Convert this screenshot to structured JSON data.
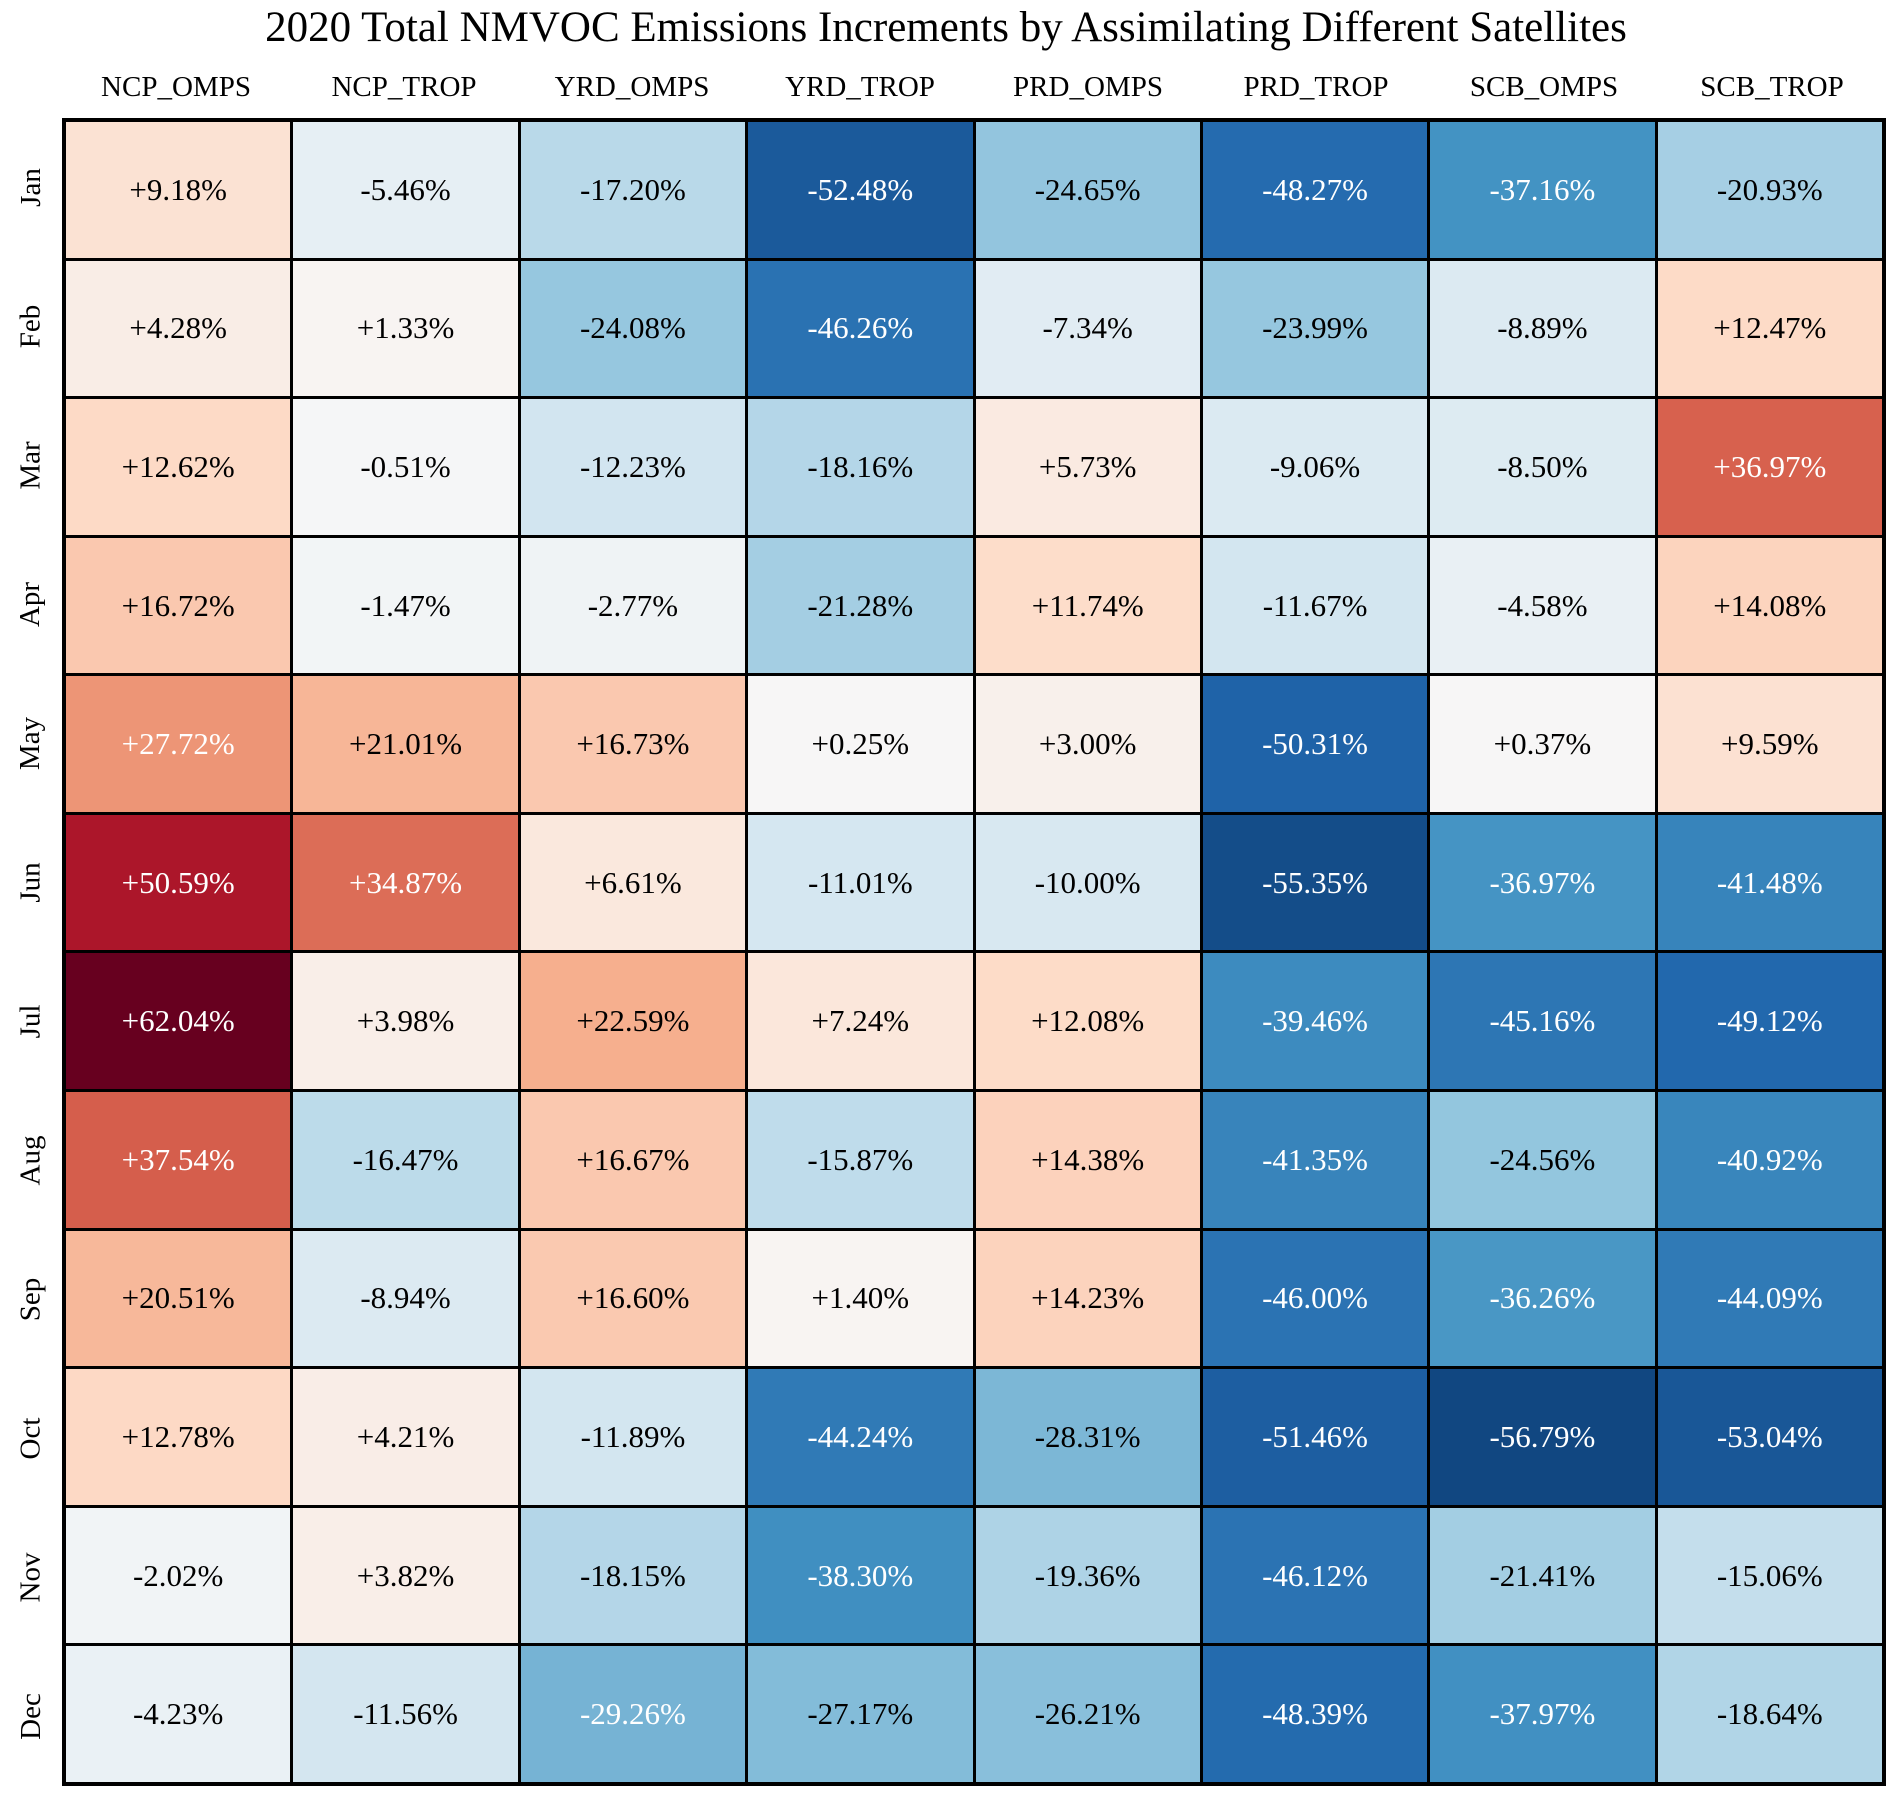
{
  "chart_data": {
    "type": "heatmap",
    "title": "2020 Total NMVOC Emissions Increments by Assimilating Different Satellites",
    "columns": [
      "NCP_OMPS",
      "NCP_TROP",
      "YRD_OMPS",
      "YRD_TROP",
      "PRD_OMPS",
      "PRD_TROP",
      "SCB_OMPS",
      "SCB_TROP"
    ],
    "rows": [
      "Jan",
      "Feb",
      "Mar",
      "Apr",
      "May",
      "Jun",
      "Jul",
      "Aug",
      "Sep",
      "Oct",
      "Nov",
      "Dec"
    ],
    "values_percent": [
      [
        9.18,
        -5.46,
        -17.2,
        -52.48,
        -24.65,
        -48.27,
        -37.16,
        -20.93
      ],
      [
        4.28,
        1.33,
        -24.08,
        -46.26,
        -7.34,
        -23.99,
        -8.89,
        12.47
      ],
      [
        12.62,
        -0.51,
        -12.23,
        -18.16,
        5.73,
        -9.06,
        -8.5,
        36.97
      ],
      [
        16.72,
        -1.47,
        -2.77,
        -21.28,
        11.74,
        -11.67,
        -4.58,
        14.08
      ],
      [
        27.72,
        21.01,
        16.73,
        0.25,
        3.0,
        -50.31,
        0.37,
        9.59
      ],
      [
        50.59,
        34.87,
        6.61,
        -11.01,
        -10.0,
        -55.35,
        -36.97,
        -41.48
      ],
      [
        62.04,
        3.98,
        22.59,
        7.24,
        12.08,
        -39.46,
        -45.16,
        -49.12
      ],
      [
        37.54,
        -16.47,
        16.67,
        -15.87,
        14.38,
        -41.35,
        -24.56,
        -40.92
      ],
      [
        20.51,
        -8.94,
        16.6,
        1.4,
        14.23,
        -46.0,
        -36.26,
        -44.09
      ],
      [
        12.78,
        4.21,
        -11.89,
        -44.24,
        -28.31,
        -51.46,
        -56.79,
        -53.04
      ],
      [
        -2.02,
        3.82,
        -18.15,
        -38.3,
        -19.36,
        -46.12,
        -21.41,
        -15.06
      ],
      [
        -4.23,
        -11.56,
        -29.26,
        -27.17,
        -26.21,
        -48.39,
        -37.97,
        -18.64
      ]
    ],
    "cell_text_format": "signed percent with 2 decimals, e.g. +9.18% / -5.46%",
    "white_text_cells": [
      [
        0,
        0,
        0,
        1,
        0,
        1,
        1,
        0
      ],
      [
        0,
        0,
        0,
        1,
        0,
        0,
        0,
        0
      ],
      [
        0,
        0,
        0,
        0,
        0,
        0,
        0,
        1
      ],
      [
        0,
        0,
        0,
        0,
        0,
        0,
        0,
        0
      ],
      [
        1,
        0,
        0,
        0,
        0,
        1,
        0,
        0
      ],
      [
        1,
        1,
        0,
        0,
        0,
        1,
        1,
        1
      ],
      [
        1,
        0,
        0,
        0,
        0,
        1,
        1,
        1
      ],
      [
        1,
        0,
        0,
        0,
        0,
        1,
        0,
        1
      ],
      [
        0,
        0,
        0,
        0,
        0,
        1,
        1,
        1
      ],
      [
        0,
        0,
        0,
        1,
        0,
        1,
        1,
        1
      ],
      [
        0,
        0,
        0,
        1,
        0,
        1,
        0,
        0
      ],
      [
        0,
        0,
        1,
        0,
        0,
        1,
        1,
        0
      ]
    ],
    "colormap": {
      "name": "RdBu diverging (blue = negative, red = positive)",
      "vmin": -62.04,
      "vmax": 62.04,
      "stops": [
        "#053061",
        "#2166ac",
        "#4393c3",
        "#92c5de",
        "#d1e5f0",
        "#f7f7f7",
        "#fddbc7",
        "#f4a582",
        "#d6604d",
        "#b2182b",
        "#67001f"
      ]
    },
    "grid_line_color": "#000000",
    "background_color": "#ffffff",
    "text_color_dark": "#000000",
    "text_color_light": "#ffffff"
  }
}
